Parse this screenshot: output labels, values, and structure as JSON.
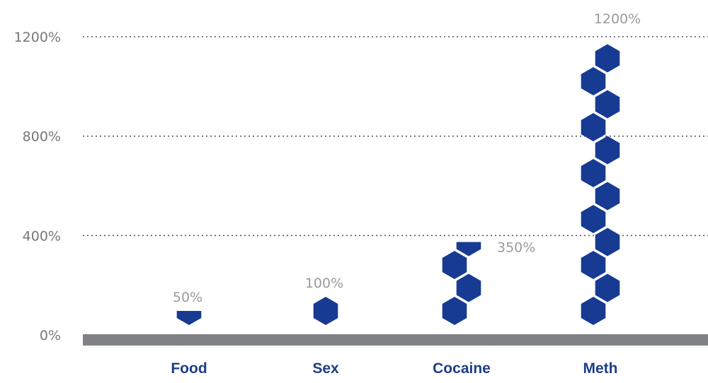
{
  "colors": {
    "accent": "#173b93",
    "baseline": "#808285",
    "grid": "#555555",
    "tick_text": "#777777",
    "label_text": "#9a9a9a",
    "category_text": "#1f3e8a"
  },
  "chart_data": {
    "type": "bar",
    "categories": [
      "Food",
      "Sex",
      "Cocaine",
      "Meth"
    ],
    "values": [
      50,
      100,
      350,
      1200
    ],
    "data_labels": [
      "50%",
      "100%",
      "350%",
      "1200%"
    ],
    "yticks": [
      0,
      400,
      800,
      1200
    ],
    "ytick_labels": [
      "0%",
      "400%",
      "800%",
      "1200%"
    ],
    "ylim": [
      0,
      1200
    ],
    "grid": true,
    "grid_style": "dotted",
    "mark": "hexagon-stack",
    "title": "",
    "xlabel": "",
    "ylabel": ""
  }
}
